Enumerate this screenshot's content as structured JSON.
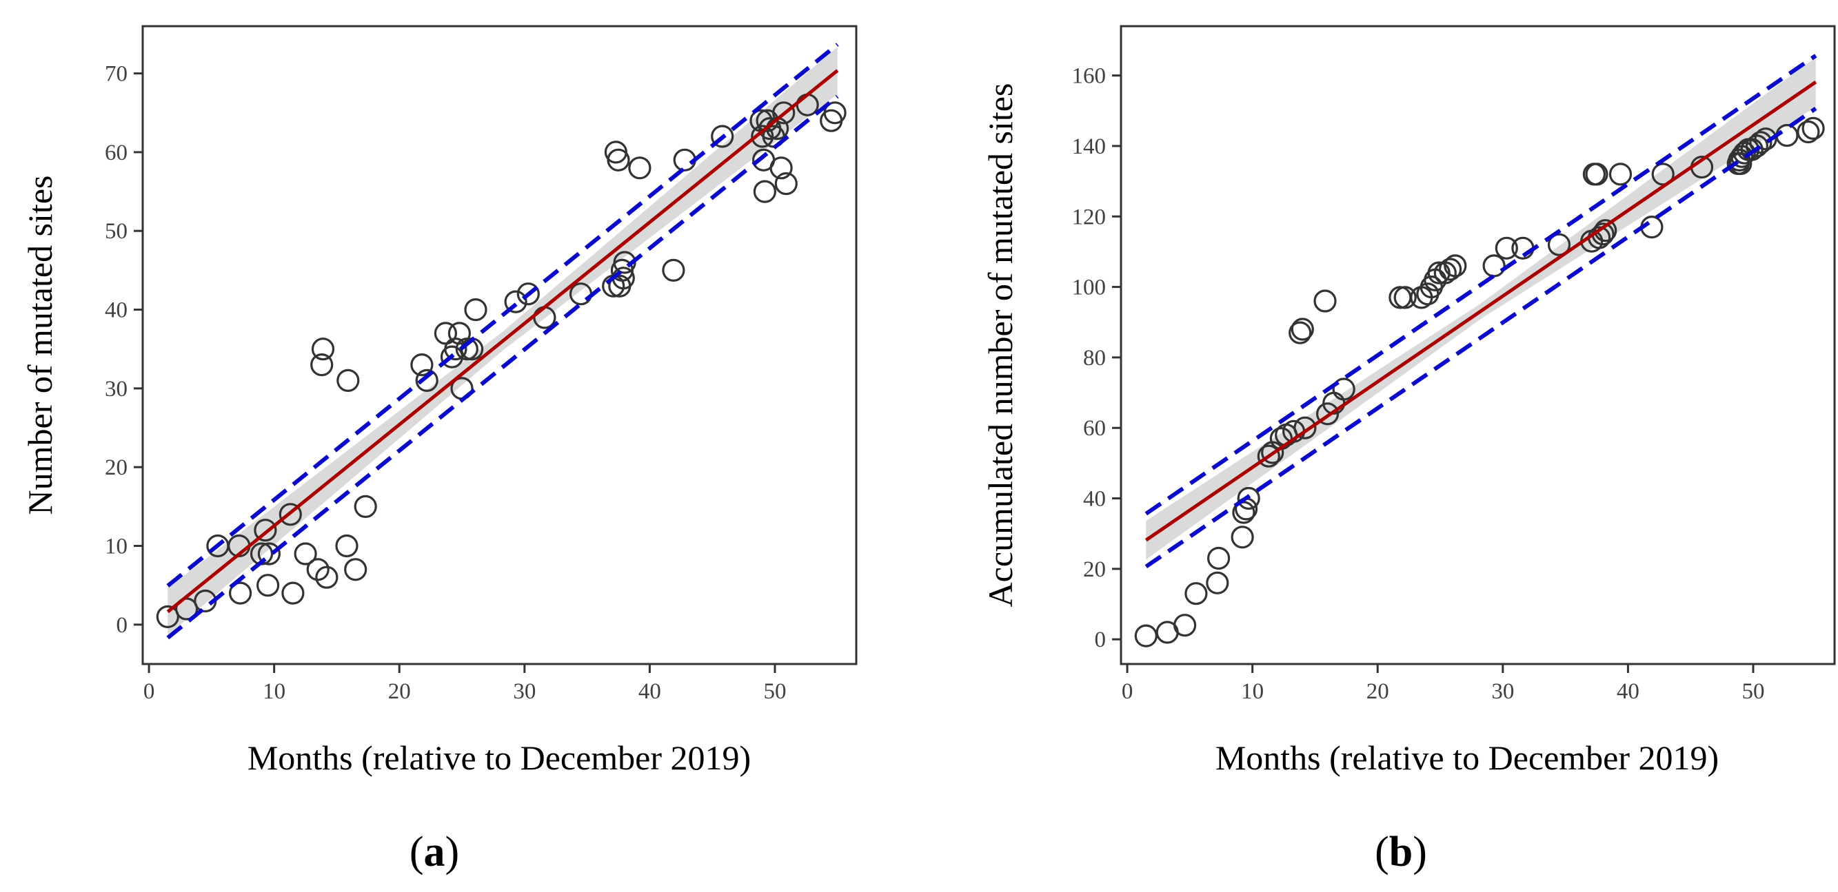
{
  "colors": {
    "points": "#333333",
    "fit": "#aa0000",
    "ci_band": "#d3d3d3",
    "prediction": "#0a0acc",
    "axis": "#333333"
  },
  "chart_data": [
    {
      "id": "a",
      "type": "scatter",
      "panel_label": {
        "open": "(",
        "letter": "a",
        "close": ")"
      },
      "xlabel": "Months (relative to December 2019)",
      "ylabel": "Number of mutated sites",
      "xlim": [
        -0.5,
        56.5
      ],
      "ylim": [
        -5,
        76
      ],
      "xticks": [
        0,
        10,
        20,
        30,
        40,
        50
      ],
      "yticks": [
        0,
        10,
        20,
        30,
        40,
        50,
        60,
        70
      ],
      "fit": {
        "intercept": -0.3,
        "slope": 1.285,
        "x_range": [
          1.5,
          55
        ]
      },
      "ci_halfwidth": [
        3.0,
        1.2,
        3.0
      ],
      "pred_halfwidth": 3.3,
      "points": [
        [
          1.5,
          1
        ],
        [
          3.0,
          2
        ],
        [
          4.5,
          3
        ],
        [
          5.5,
          10
        ],
        [
          7.2,
          10
        ],
        [
          7.3,
          4
        ],
        [
          9.0,
          9
        ],
        [
          9.3,
          12
        ],
        [
          9.5,
          5
        ],
        [
          9.6,
          9
        ],
        [
          11.3,
          14
        ],
        [
          11.5,
          4
        ],
        [
          12.5,
          9
        ],
        [
          13.5,
          7
        ],
        [
          13.8,
          33
        ],
        [
          13.9,
          35
        ],
        [
          14.2,
          6
        ],
        [
          15.8,
          10
        ],
        [
          15.9,
          31
        ],
        [
          16.5,
          7
        ],
        [
          17.3,
          15
        ],
        [
          21.8,
          33
        ],
        [
          22.2,
          31
        ],
        [
          23.7,
          37
        ],
        [
          24.2,
          34
        ],
        [
          24.5,
          35
        ],
        [
          24.8,
          37
        ],
        [
          25.0,
          30
        ],
        [
          25.4,
          35
        ],
        [
          25.8,
          35
        ],
        [
          26.1,
          40
        ],
        [
          29.3,
          41
        ],
        [
          30.3,
          42
        ],
        [
          31.6,
          39
        ],
        [
          34.5,
          42
        ],
        [
          37.1,
          43
        ],
        [
          37.3,
          60
        ],
        [
          37.5,
          59
        ],
        [
          37.6,
          43
        ],
        [
          37.8,
          45
        ],
        [
          37.9,
          44
        ],
        [
          38.0,
          46
        ],
        [
          39.2,
          58
        ],
        [
          41.9,
          45
        ],
        [
          42.8,
          59
        ],
        [
          45.8,
          62
        ],
        [
          48.9,
          64
        ],
        [
          49.0,
          62
        ],
        [
          49.1,
          59
        ],
        [
          49.2,
          55
        ],
        [
          49.4,
          64
        ],
        [
          49.6,
          63
        ],
        [
          49.9,
          62
        ],
        [
          50.2,
          63
        ],
        [
          50.5,
          58
        ],
        [
          50.7,
          65
        ],
        [
          50.9,
          56
        ],
        [
          52.6,
          66
        ],
        [
          54.5,
          64
        ],
        [
          54.8,
          65
        ]
      ]
    },
    {
      "id": "b",
      "type": "scatter",
      "panel_label": {
        "open": "(",
        "letter": "b",
        "close": ")"
      },
      "xlabel": "Months (relative to December 2019)",
      "ylabel": "Accumulated number of mutated sites",
      "xlim": [
        -0.5,
        56.5
      ],
      "ylim": [
        -7,
        174
      ],
      "xticks": [
        0,
        10,
        20,
        30,
        40,
        50
      ],
      "yticks": [
        0,
        20,
        40,
        60,
        80,
        100,
        120,
        140,
        160
      ],
      "fit": {
        "intercept": 24.5,
        "slope": 2.43,
        "x_range": [
          1.5,
          55
        ]
      },
      "ci_halfwidth": [
        5.5,
        2.2,
        7.0
      ],
      "pred_halfwidth": 7.5,
      "points": [
        [
          1.5,
          1
        ],
        [
          3.2,
          2
        ],
        [
          4.6,
          4
        ],
        [
          5.5,
          13
        ],
        [
          7.2,
          16
        ],
        [
          7.3,
          23
        ],
        [
          9.2,
          29
        ],
        [
          9.3,
          36
        ],
        [
          9.5,
          37
        ],
        [
          9.7,
          40
        ],
        [
          11.3,
          52
        ],
        [
          11.6,
          53
        ],
        [
          12.3,
          57
        ],
        [
          12.7,
          58
        ],
        [
          13.3,
          59
        ],
        [
          13.8,
          87
        ],
        [
          14.0,
          88
        ],
        [
          14.2,
          60
        ],
        [
          15.8,
          96
        ],
        [
          16.0,
          64
        ],
        [
          16.5,
          67
        ],
        [
          17.3,
          71
        ],
        [
          21.8,
          97
        ],
        [
          22.2,
          97
        ],
        [
          23.5,
          97
        ],
        [
          24.0,
          98
        ],
        [
          24.3,
          100
        ],
        [
          24.6,
          102
        ],
        [
          24.9,
          104
        ],
        [
          25.4,
          104
        ],
        [
          25.8,
          105
        ],
        [
          26.2,
          106
        ],
        [
          29.3,
          106
        ],
        [
          30.3,
          111
        ],
        [
          31.6,
          111
        ],
        [
          34.5,
          112
        ],
        [
          37.1,
          113
        ],
        [
          37.3,
          132
        ],
        [
          37.5,
          132
        ],
        [
          37.7,
          114
        ],
        [
          38.0,
          115
        ],
        [
          38.2,
          116
        ],
        [
          39.4,
          132
        ],
        [
          41.9,
          117
        ],
        [
          42.8,
          132
        ],
        [
          45.9,
          134
        ],
        [
          48.8,
          135
        ],
        [
          48.9,
          136
        ],
        [
          49.0,
          135
        ],
        [
          49.1,
          137
        ],
        [
          49.3,
          138
        ],
        [
          49.6,
          139
        ],
        [
          49.9,
          139
        ],
        [
          50.3,
          140
        ],
        [
          50.6,
          141
        ],
        [
          51.0,
          142
        ],
        [
          52.7,
          143
        ],
        [
          54.4,
          144
        ],
        [
          54.8,
          145
        ]
      ]
    }
  ]
}
